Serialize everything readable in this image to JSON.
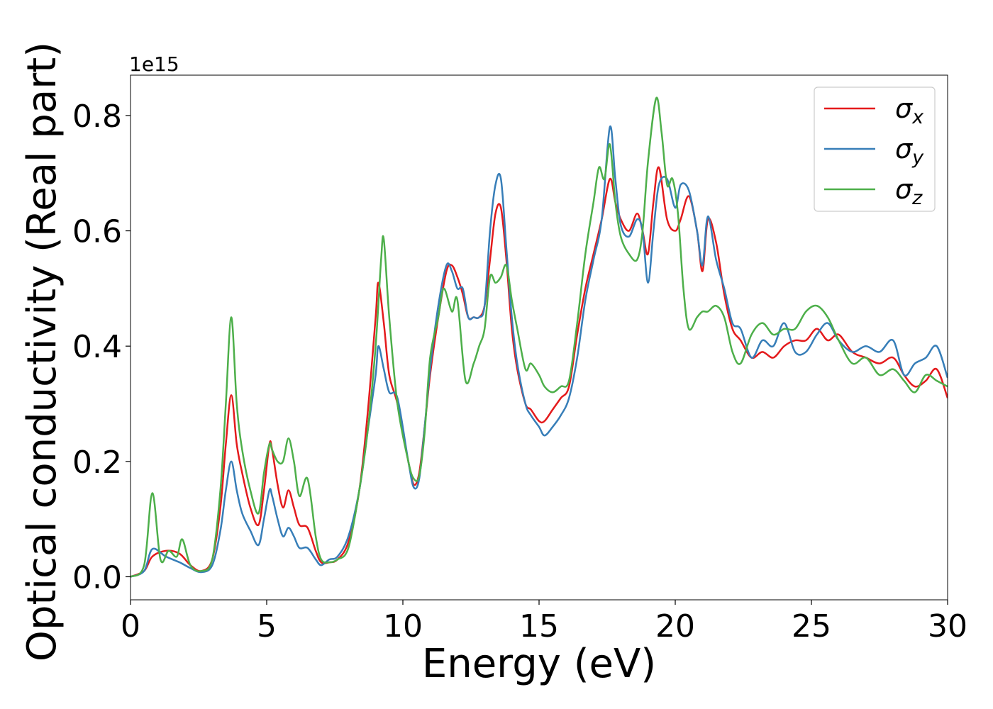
{
  "chart_data": {
    "type": "line",
    "title": "",
    "xlabel": "Energy (eV)",
    "ylabel": "Optical conductivity (Real part)",
    "y_offset_label": "1e15",
    "xlim": [
      0,
      30
    ],
    "ylim": [
      -0.04,
      0.87
    ],
    "x_ticks": [
      0,
      5,
      10,
      15,
      20,
      25,
      30
    ],
    "x_tick_labels": [
      "0",
      "5",
      "10",
      "15",
      "20",
      "25",
      "30"
    ],
    "y_ticks": [
      0.0,
      0.2,
      0.4,
      0.6,
      0.8
    ],
    "y_tick_labels": [
      "0.0",
      "0.2",
      "0.4",
      "0.6",
      "0.8"
    ],
    "grid": false,
    "legend_position": "top-right",
    "series": [
      {
        "name": "σx",
        "symbol": "σ",
        "subscript": "x",
        "color": "#e41a1c",
        "x": [
          0,
          0.5,
          0.8,
          1.3,
          1.8,
          2.2,
          2.6,
          3.0,
          3.3,
          3.5,
          3.7,
          3.9,
          4.1,
          4.4,
          4.7,
          4.9,
          5.1,
          5.2,
          5.4,
          5.6,
          5.8,
          6.0,
          6.2,
          6.5,
          6.8,
          7.0,
          7.3,
          7.6,
          8.0,
          8.4,
          8.7,
          9.0,
          9.1,
          9.3,
          9.5,
          9.8,
          10.2,
          10.4,
          10.6,
          10.8,
          11.0,
          11.3,
          11.6,
          11.8,
          12.0,
          12.2,
          12.4,
          12.6,
          12.8,
          13.0,
          13.2,
          13.4,
          13.6,
          13.8,
          14.0,
          14.2,
          14.5,
          14.7,
          15.0,
          15.2,
          15.5,
          15.8,
          16.1,
          16.4,
          16.7,
          17.0,
          17.3,
          17.6,
          17.8,
          18.0,
          18.3,
          18.6,
          18.8,
          19.0,
          19.2,
          19.4,
          19.7,
          20.0,
          20.2,
          20.5,
          20.8,
          21.0,
          21.2,
          21.5,
          21.8,
          22.1,
          22.4,
          22.8,
          23.2,
          23.6,
          24.0,
          24.4,
          24.8,
          25.2,
          25.6,
          26.0,
          26.5,
          27.0,
          27.5,
          28.0,
          28.4,
          28.8,
          29.2,
          29.6,
          30.0
        ],
        "values": [
          0.0,
          0.01,
          0.035,
          0.045,
          0.04,
          0.02,
          0.01,
          0.03,
          0.12,
          0.23,
          0.315,
          0.23,
          0.18,
          0.12,
          0.09,
          0.15,
          0.23,
          0.22,
          0.16,
          0.12,
          0.15,
          0.12,
          0.09,
          0.085,
          0.045,
          0.025,
          0.025,
          0.03,
          0.06,
          0.15,
          0.28,
          0.45,
          0.51,
          0.44,
          0.35,
          0.3,
          0.2,
          0.16,
          0.18,
          0.26,
          0.35,
          0.45,
          0.53,
          0.54,
          0.52,
          0.49,
          0.45,
          0.45,
          0.45,
          0.47,
          0.55,
          0.63,
          0.64,
          0.55,
          0.43,
          0.36,
          0.3,
          0.29,
          0.27,
          0.27,
          0.29,
          0.31,
          0.33,
          0.42,
          0.5,
          0.56,
          0.62,
          0.69,
          0.65,
          0.62,
          0.6,
          0.63,
          0.6,
          0.56,
          0.65,
          0.71,
          0.62,
          0.6,
          0.62,
          0.66,
          0.6,
          0.53,
          0.62,
          0.58,
          0.49,
          0.43,
          0.41,
          0.38,
          0.39,
          0.38,
          0.4,
          0.41,
          0.41,
          0.43,
          0.41,
          0.42,
          0.39,
          0.38,
          0.37,
          0.38,
          0.35,
          0.33,
          0.34,
          0.36,
          0.31
        ]
      },
      {
        "name": "σy",
        "symbol": "σ",
        "subscript": "y",
        "color": "#377eb8",
        "x": [
          0,
          0.5,
          0.8,
          1.3,
          1.8,
          2.2,
          2.6,
          3.0,
          3.3,
          3.5,
          3.7,
          3.9,
          4.1,
          4.4,
          4.7,
          4.9,
          5.1,
          5.2,
          5.4,
          5.6,
          5.8,
          6.0,
          6.2,
          6.5,
          6.8,
          7.0,
          7.3,
          7.6,
          8.0,
          8.4,
          8.7,
          9.0,
          9.1,
          9.3,
          9.5,
          9.8,
          10.2,
          10.4,
          10.6,
          10.8,
          11.0,
          11.3,
          11.6,
          11.8,
          12.0,
          12.2,
          12.4,
          12.6,
          12.8,
          13.0,
          13.2,
          13.4,
          13.6,
          13.8,
          14.0,
          14.2,
          14.5,
          14.7,
          15.0,
          15.2,
          15.5,
          15.8,
          16.1,
          16.4,
          16.7,
          17.0,
          17.3,
          17.6,
          17.8,
          18.0,
          18.3,
          18.6,
          18.8,
          19.0,
          19.2,
          19.4,
          19.7,
          20.0,
          20.2,
          20.5,
          20.8,
          21.0,
          21.2,
          21.5,
          21.8,
          22.1,
          22.4,
          22.8,
          23.2,
          23.6,
          24.0,
          24.4,
          24.8,
          25.2,
          25.6,
          26.0,
          26.5,
          27.0,
          27.5,
          28.0,
          28.4,
          28.8,
          29.2,
          29.6,
          30.0
        ],
        "values": [
          0.0,
          0.01,
          0.048,
          0.035,
          0.025,
          0.015,
          0.008,
          0.02,
          0.08,
          0.15,
          0.2,
          0.15,
          0.11,
          0.08,
          0.055,
          0.1,
          0.15,
          0.14,
          0.1,
          0.07,
          0.085,
          0.07,
          0.05,
          0.05,
          0.03,
          0.02,
          0.03,
          0.035,
          0.07,
          0.15,
          0.25,
          0.35,
          0.4,
          0.36,
          0.32,
          0.31,
          0.2,
          0.155,
          0.17,
          0.26,
          0.36,
          0.47,
          0.54,
          0.53,
          0.5,
          0.5,
          0.45,
          0.45,
          0.45,
          0.47,
          0.6,
          0.68,
          0.69,
          0.57,
          0.45,
          0.37,
          0.3,
          0.28,
          0.26,
          0.245,
          0.26,
          0.28,
          0.31,
          0.38,
          0.48,
          0.55,
          0.62,
          0.78,
          0.69,
          0.61,
          0.59,
          0.62,
          0.6,
          0.51,
          0.6,
          0.68,
          0.69,
          0.64,
          0.68,
          0.67,
          0.6,
          0.54,
          0.625,
          0.55,
          0.5,
          0.44,
          0.43,
          0.38,
          0.41,
          0.4,
          0.44,
          0.39,
          0.39,
          0.42,
          0.44,
          0.41,
          0.39,
          0.4,
          0.39,
          0.41,
          0.35,
          0.37,
          0.38,
          0.4,
          0.345
        ]
      },
      {
        "name": "σz",
        "symbol": "σ",
        "subscript": "z",
        "color": "#4daf4a",
        "x": [
          0,
          0.5,
          0.8,
          1.1,
          1.4,
          1.7,
          1.9,
          2.2,
          2.6,
          3.0,
          3.3,
          3.5,
          3.7,
          3.9,
          4.1,
          4.4,
          4.7,
          4.9,
          5.1,
          5.2,
          5.4,
          5.6,
          5.8,
          6.0,
          6.2,
          6.5,
          6.8,
          7.0,
          7.3,
          7.6,
          8.0,
          8.4,
          8.7,
          9.0,
          9.2,
          9.3,
          9.5,
          9.8,
          10.2,
          10.4,
          10.6,
          10.8,
          11.0,
          11.3,
          11.5,
          11.8,
          12.0,
          12.3,
          12.6,
          12.8,
          13.0,
          13.2,
          13.4,
          13.6,
          13.8,
          14.0,
          14.2,
          14.5,
          14.7,
          15.0,
          15.2,
          15.5,
          15.8,
          16.1,
          16.4,
          16.7,
          17.0,
          17.2,
          17.4,
          17.6,
          17.8,
          18.0,
          18.3,
          18.6,
          18.8,
          19.0,
          19.3,
          19.5,
          19.7,
          19.9,
          20.1,
          20.3,
          20.5,
          20.8,
          21.0,
          21.2,
          21.5,
          21.8,
          22.1,
          22.4,
          22.8,
          23.2,
          23.6,
          24.0,
          24.4,
          24.8,
          25.2,
          25.6,
          26.0,
          26.5,
          27.0,
          27.5,
          28.0,
          28.4,
          28.8,
          29.2,
          29.6,
          30.0
        ],
        "values": [
          0.0,
          0.02,
          0.145,
          0.03,
          0.045,
          0.035,
          0.065,
          0.02,
          0.01,
          0.03,
          0.15,
          0.3,
          0.45,
          0.3,
          0.22,
          0.15,
          0.11,
          0.18,
          0.23,
          0.22,
          0.2,
          0.2,
          0.24,
          0.2,
          0.14,
          0.17,
          0.07,
          0.03,
          0.025,
          0.03,
          0.05,
          0.15,
          0.25,
          0.4,
          0.55,
          0.585,
          0.45,
          0.3,
          0.2,
          0.17,
          0.175,
          0.25,
          0.38,
          0.45,
          0.5,
          0.46,
          0.48,
          0.34,
          0.37,
          0.4,
          0.43,
          0.52,
          0.51,
          0.52,
          0.54,
          0.48,
          0.43,
          0.36,
          0.37,
          0.35,
          0.33,
          0.32,
          0.33,
          0.34,
          0.44,
          0.56,
          0.65,
          0.71,
          0.69,
          0.75,
          0.65,
          0.59,
          0.56,
          0.55,
          0.6,
          0.72,
          0.83,
          0.77,
          0.68,
          0.69,
          0.63,
          0.5,
          0.43,
          0.45,
          0.46,
          0.46,
          0.47,
          0.45,
          0.39,
          0.37,
          0.42,
          0.44,
          0.42,
          0.43,
          0.43,
          0.46,
          0.47,
          0.45,
          0.41,
          0.37,
          0.38,
          0.35,
          0.36,
          0.34,
          0.32,
          0.35,
          0.34,
          0.33
        ]
      }
    ]
  }
}
